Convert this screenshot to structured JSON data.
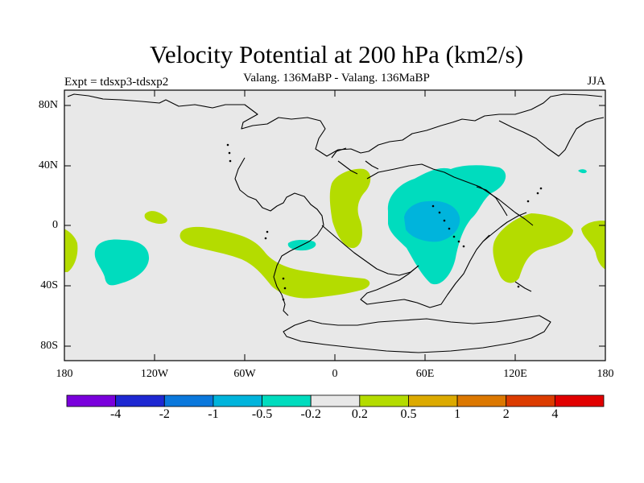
{
  "title": "Velocity Potential at 200 hPa (km2/s)",
  "subtitle": "Valang. 136MaBP - Valang. 136MaBP",
  "experiment": "Expt = tdsxp3-tdsxp2",
  "season": "JJA",
  "chart_data": {
    "type": "heatmap",
    "variable": "velocity potential difference",
    "units": "km2/s",
    "level": "200 hPa",
    "lat_range": [
      -90,
      90
    ],
    "lon_range": [
      -180,
      180
    ],
    "lat_ticks": [
      "80N",
      "40N",
      "0",
      "40S",
      "80S"
    ],
    "lon_ticks": [
      "180",
      "120W",
      "60W",
      "0",
      "60E",
      "120E",
      "180"
    ],
    "colorbar": {
      "levels": [
        "-4",
        "-2",
        "-1",
        "-0.5",
        "-0.2",
        "0.2",
        "0.5",
        "1",
        "2",
        "4"
      ],
      "colors": [
        "#7a00dc",
        "#1e28d2",
        "#0a78dc",
        "#00b4dc",
        "#00dcbe",
        "#e8e8e8",
        "#b4dc00",
        "#dcaa00",
        "#dc7800",
        "#dc3c00",
        "#e10000"
      ]
    },
    "background_color": "#e8e8e8"
  }
}
